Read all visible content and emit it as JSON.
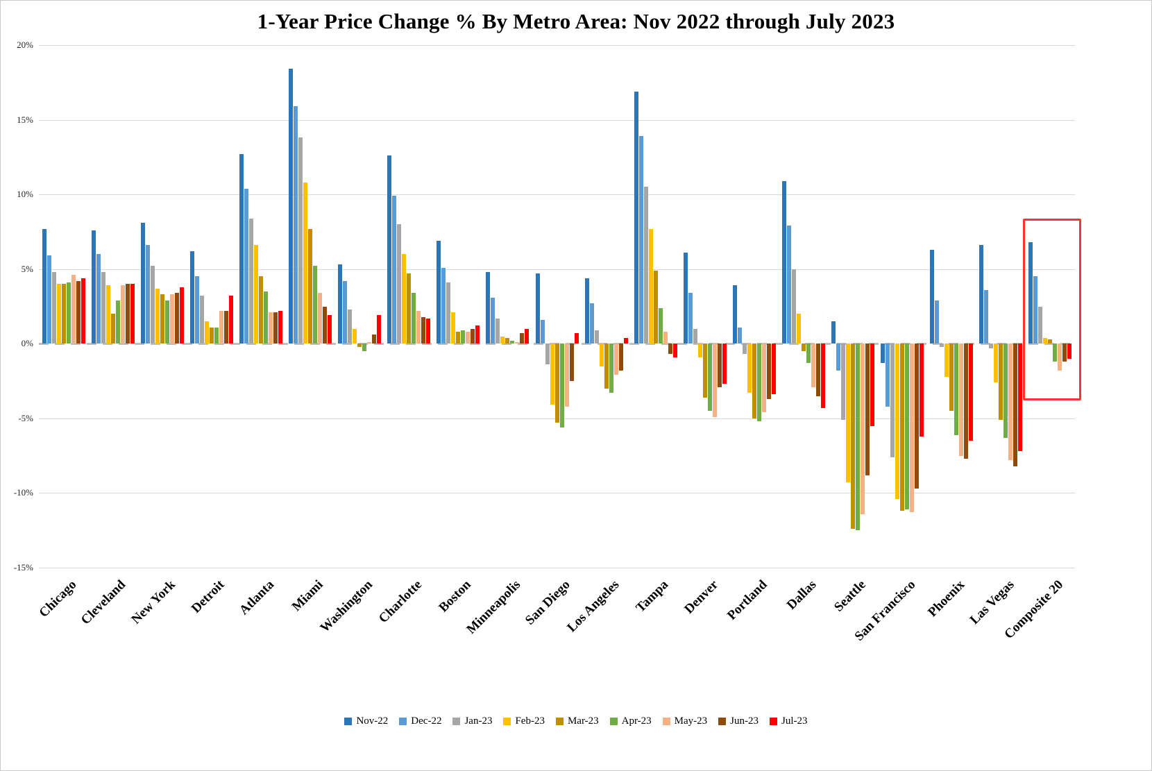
{
  "chart_data": {
    "type": "bar",
    "title": "1-Year Price Change % By Metro Area: Nov 2022 through July 2023",
    "xlabel": "",
    "ylabel": "",
    "ylim": [
      -15,
      20
    ],
    "grid": true,
    "legend_position": "bottom",
    "yticks": [
      {
        "value": 20,
        "label": "20%"
      },
      {
        "value": 15,
        "label": "15%"
      },
      {
        "value": 10,
        "label": "10%"
      },
      {
        "value": 5,
        "label": "5%"
      },
      {
        "value": 0,
        "label": "0%"
      },
      {
        "value": -5,
        "label": "-5%"
      },
      {
        "value": -10,
        "label": "-10%"
      },
      {
        "value": -15,
        "label": "-15%"
      }
    ],
    "categories": [
      "Chicago",
      "Cleveland",
      "New York",
      "Detroit",
      "Atlanta",
      "Miami",
      "Washington",
      "Charlotte",
      "Boston",
      "Minneapolis",
      "San Diego",
      "Los Angeles",
      "Tampa",
      "Denver",
      "Portland",
      "Dallas",
      "Seattle",
      "San Francisco",
      "Phoenix",
      "Las Vegas",
      "Composite 20"
    ],
    "series": [
      {
        "name": "Nov-22",
        "color": "#2E75B6",
        "values": [
          7.7,
          7.6,
          8.1,
          6.2,
          12.7,
          18.4,
          5.3,
          12.6,
          6.9,
          4.8,
          4.7,
          4.4,
          16.9,
          6.1,
          3.9,
          10.9,
          1.5,
          -1.3,
          6.3,
          6.6,
          6.8
        ]
      },
      {
        "name": "Dec-22",
        "color": "#5B9BD5",
        "values": [
          5.9,
          6.0,
          6.6,
          4.5,
          10.4,
          15.9,
          4.2,
          9.9,
          5.1,
          3.1,
          1.6,
          2.7,
          13.9,
          3.4,
          1.1,
          7.9,
          -1.8,
          -4.2,
          2.9,
          3.6,
          4.5
        ]
      },
      {
        "name": "Jan-23",
        "color": "#A6A6A6",
        "values": [
          4.8,
          4.8,
          5.2,
          3.2,
          8.4,
          13.8,
          2.3,
          8.0,
          4.1,
          1.7,
          -1.4,
          0.9,
          10.5,
          1.0,
          -0.7,
          5.0,
          -5.1,
          -7.6,
          -0.2,
          -0.3,
          2.5
        ]
      },
      {
        "name": "Feb-23",
        "color": "#FFC000",
        "values": [
          4.0,
          3.9,
          3.7,
          1.5,
          6.6,
          10.8,
          1.0,
          6.0,
          2.1,
          0.5,
          -4.1,
          -1.5,
          7.7,
          -0.9,
          -3.3,
          2.0,
          -9.3,
          -10.4,
          -2.2,
          -2.6,
          0.4
        ]
      },
      {
        "name": "Mar-23",
        "color": "#BF8F00",
        "values": [
          4.0,
          2.0,
          3.3,
          1.1,
          4.5,
          7.7,
          -0.2,
          4.7,
          0.8,
          0.4,
          -5.3,
          -3.0,
          4.9,
          -3.6,
          -5.0,
          -0.5,
          -12.4,
          -11.2,
          -4.5,
          -5.1,
          0.3
        ]
      },
      {
        "name": "Apr-23",
        "color": "#70AD47",
        "values": [
          4.1,
          2.9,
          2.9,
          1.1,
          3.5,
          5.2,
          -0.5,
          3.4,
          0.9,
          0.2,
          -5.6,
          -3.3,
          2.4,
          -4.5,
          -5.2,
          -1.3,
          -12.5,
          -11.1,
          -6.1,
          -6.3,
          -1.2
        ]
      },
      {
        "name": "May-23",
        "color": "#F4B183",
        "values": [
          4.6,
          3.9,
          3.3,
          2.2,
          2.1,
          3.4,
          0.1,
          2.2,
          0.8,
          0.1,
          -4.2,
          -2.1,
          0.8,
          -4.9,
          -4.6,
          -2.9,
          -11.4,
          -11.3,
          -7.5,
          -7.8,
          -1.8
        ]
      },
      {
        "name": "Jun-23",
        "color": "#8F4B0E",
        "values": [
          4.2,
          4.0,
          3.4,
          2.2,
          2.1,
          2.5,
          0.6,
          1.8,
          1.0,
          0.7,
          -2.5,
          -1.8,
          -0.7,
          -2.9,
          -3.7,
          -3.5,
          -8.8,
          -9.7,
          -7.7,
          -8.2,
          -1.2
        ]
      },
      {
        "name": "Jul-23",
        "color": "#FF0000",
        "values": [
          4.4,
          4.0,
          3.8,
          3.2,
          2.2,
          1.9,
          1.9,
          1.7,
          1.2,
          1.0,
          0.7,
          0.4,
          -0.9,
          -2.7,
          -3.4,
          -4.3,
          -5.5,
          -6.2,
          -6.5,
          -7.2,
          -1.0
        ]
      }
    ],
    "highlight": {
      "category": "Composite 20",
      "top_value": 8.4,
      "bottom_value": -3.5,
      "color": "#FF3333"
    }
  }
}
